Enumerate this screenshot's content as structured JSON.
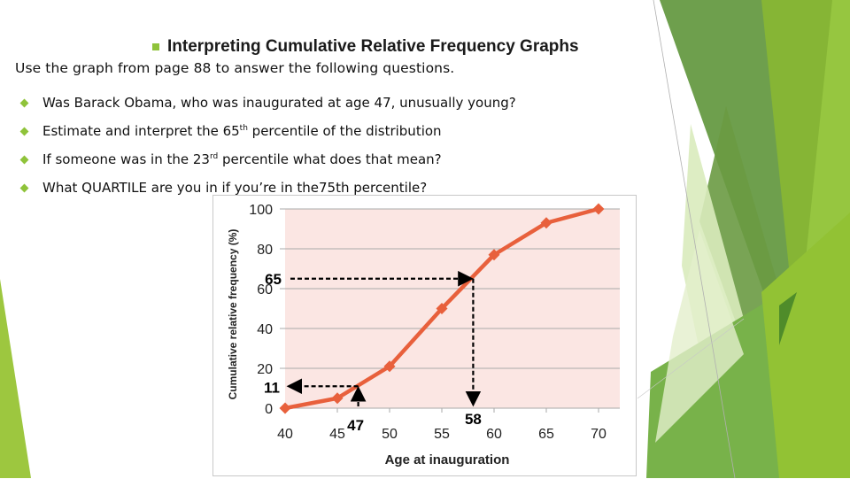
{
  "slide": {
    "title": "Interpreting Cumulative Relative Frequency Graphs",
    "intro": "Use the graph from page 88 to answer the following questions.",
    "bullets": [
      {
        "text": "Was Barack Obama, who was inaugurated at age 47, unusually young?"
      },
      {
        "pre": "Estimate and interpret the 65",
        "sup": "th",
        "post": " percentile of the distribution"
      },
      {
        "pre": "If someone was in the 23",
        "sup": "rd",
        "post": " percentile what does that mean?"
      },
      {
        "text": "What QUARTILE are you in if you’re in the75th percentile?"
      }
    ],
    "accent_color": "#8fc33a"
  },
  "chart_data": {
    "type": "line",
    "title": "",
    "xlabel": "Age at inauguration",
    "ylabel": "Cumulative relative frequency (%)",
    "x": [
      40,
      45,
      50,
      55,
      60,
      65,
      70
    ],
    "series": [
      {
        "name": "Cumulative relative frequency",
        "values": [
          0,
          5,
          21,
          50,
          77,
          93,
          100
        ],
        "color": "#e8603c"
      }
    ],
    "xticks": [
      "40",
      "45",
      "50",
      "55",
      "60",
      "65",
      "70"
    ],
    "yticks": [
      "0",
      "20",
      "40",
      "60",
      "80",
      "100"
    ],
    "xlim": [
      40,
      70
    ],
    "ylim": [
      0,
      100
    ],
    "grid": "horizontal",
    "plot_background": "#fbe6e3",
    "annotations": [
      {
        "label_x": "47",
        "label_y": "11",
        "x": 47,
        "y": 11,
        "description": "dashed arrow up from age 47 to curve then left to 11%"
      },
      {
        "label_x": "58",
        "label_y": "65",
        "x": 58,
        "y": 65,
        "description": "dashed arrow right from 65% to curve then down to age 58"
      }
    ]
  }
}
